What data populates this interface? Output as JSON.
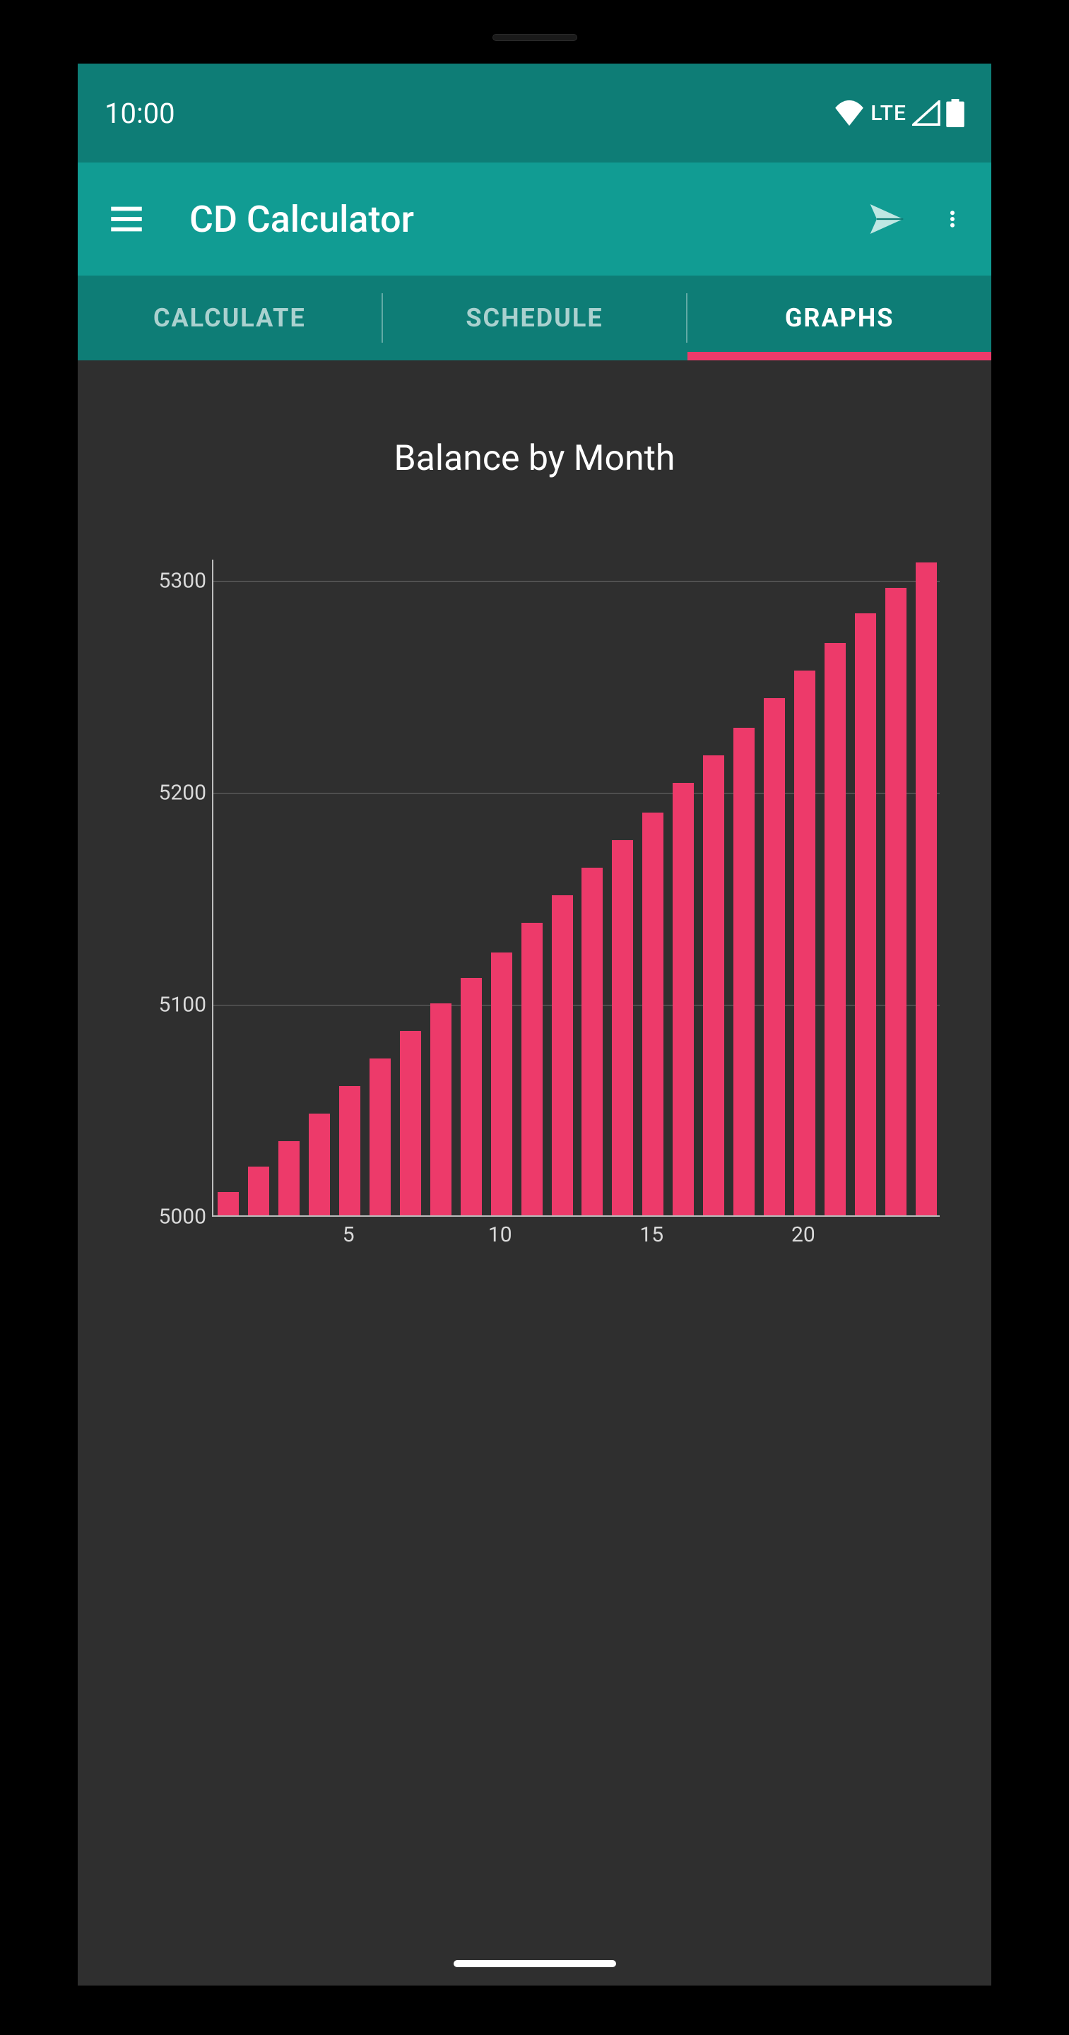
{
  "statusbar": {
    "time": "10:00",
    "lte": "LTE",
    "bg_color": "#0e7d76",
    "fg_color": "#ffffff"
  },
  "appbar": {
    "title": "CD Calculator",
    "bg_color": "#119c93",
    "fg_color": "#ffffff"
  },
  "tabs": {
    "items": [
      "CALCULATE",
      "SCHEDULE",
      "GRAPHS"
    ],
    "active_index": 2,
    "bg_color": "#0e7d76",
    "indicator_color": "#ed3a6a",
    "active_color": "#ffffff",
    "inactive_color": "rgba(255,255,255,0.65)"
  },
  "chart": {
    "type": "bar",
    "title": "Balance by Month",
    "title_fontsize": 50,
    "title_color": "#ffffff",
    "background_color": "#2f2f2f",
    "bar_color": "#ed3a6a",
    "axis_color": "#bdbdbd",
    "grid_color": "#9e9e9e",
    "label_color": "#d9d9d9",
    "label_fontsize": 30,
    "bar_width_ratio": 0.7,
    "y": {
      "min": 5000,
      "max": 5310,
      "ticks": [
        5000,
        5100,
        5200,
        5300
      ]
    },
    "x": {
      "min": 0.5,
      "max": 24.5,
      "ticks": [
        5,
        10,
        15,
        20
      ]
    },
    "categories": [
      1,
      2,
      3,
      4,
      5,
      6,
      7,
      8,
      9,
      10,
      11,
      12,
      13,
      14,
      15,
      16,
      17,
      18,
      19,
      20,
      21,
      22,
      23,
      24
    ],
    "values": [
      5011,
      5023,
      5035,
      5048,
      5061,
      5074,
      5087,
      5100,
      5112,
      5124,
      5138,
      5151,
      5164,
      5177,
      5190,
      5204,
      5217,
      5230,
      5244,
      5257,
      5270,
      5284,
      5296,
      5308
    ]
  }
}
